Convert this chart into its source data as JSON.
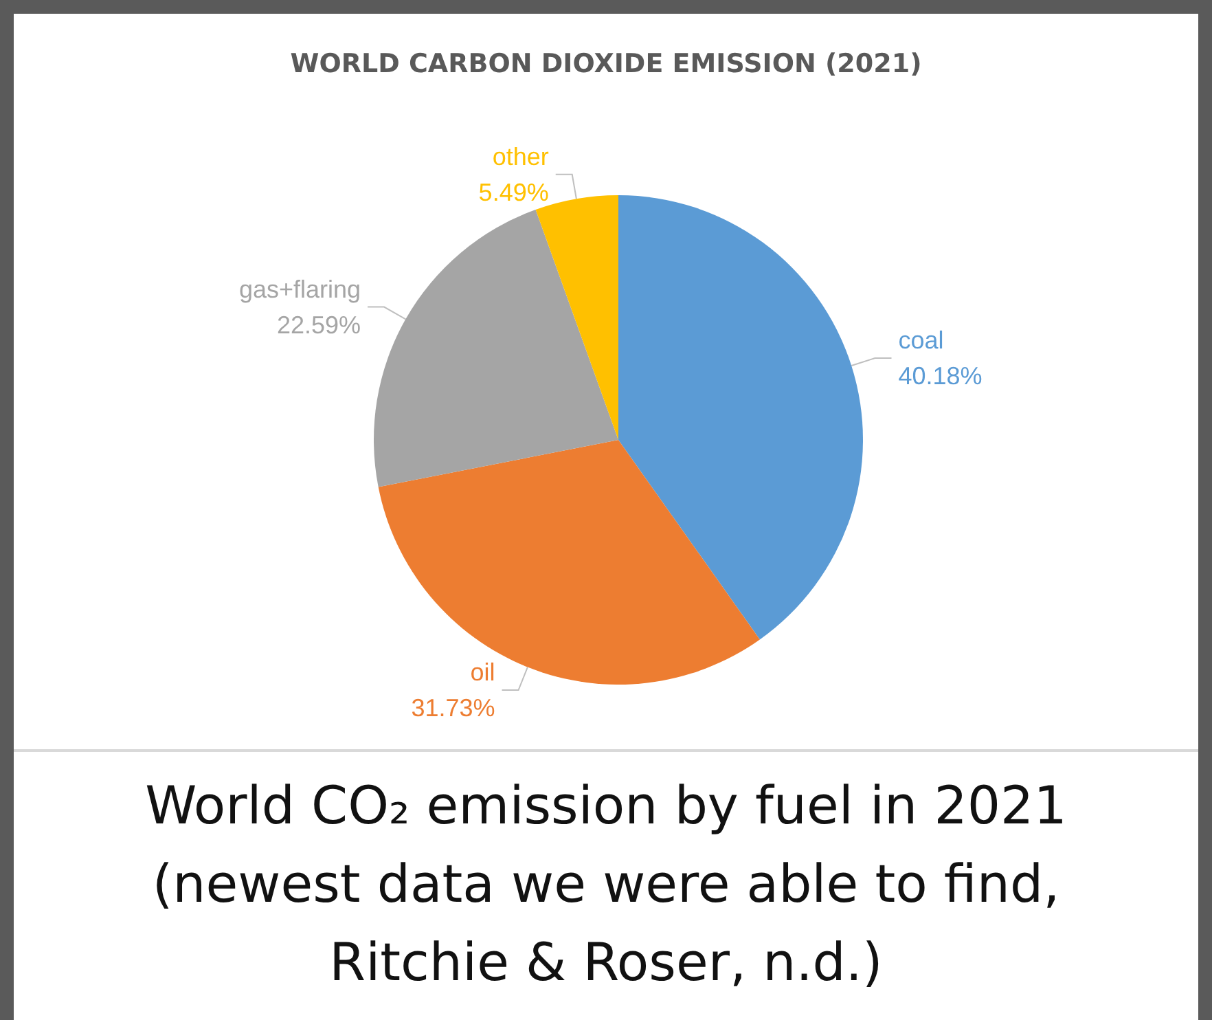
{
  "chart_data": {
    "type": "pie",
    "title": "WORLD CARBON DIOXIDE EMISSION (2021)",
    "categories": [
      "coal",
      "oil",
      "gas+flaring",
      "other"
    ],
    "values": [
      40.18,
      31.73,
      22.59,
      5.49
    ],
    "value_labels": [
      "40.18%",
      "31.73%",
      "22.59%",
      "5.49%"
    ],
    "colors": [
      "#5b9bd5",
      "#ed7d31",
      "#a5a5a5",
      "#ffc000"
    ],
    "legend": false,
    "annotations": [
      "World CO₂ emission by fuel in 2021\n(newest data we were able to find,\nRitchie & Roser, n.d.)"
    ]
  }
}
